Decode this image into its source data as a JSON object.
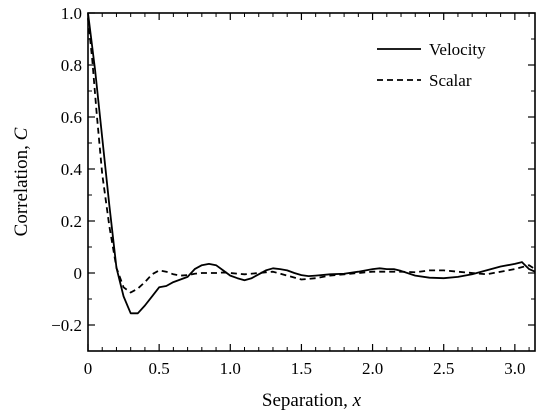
{
  "chart_data": {
    "type": "line",
    "xlabel": "Separation, ",
    "xlabel_var": "x",
    "ylabel": "Correlation, ",
    "ylabel_var": "C",
    "xlim": [
      0,
      3.1416
    ],
    "ylim": [
      -0.3,
      1.0
    ],
    "xticks": [
      0,
      0.5,
      1.0,
      1.5,
      2.0,
      2.5,
      3.0
    ],
    "xtick_labels": [
      "0",
      "0.5",
      "1.0",
      "1.5",
      "2.0",
      "2.5",
      "3.0"
    ],
    "yticks": [
      -0.2,
      0,
      0.2,
      0.4,
      0.6,
      0.8,
      1.0
    ],
    "ytick_labels": [
      "−0.2",
      "0",
      "0.2",
      "0.4",
      "0.6",
      "0.8",
      "1.0"
    ],
    "legend_position": "top-right",
    "grid": false,
    "series": [
      {
        "name": "Velocity",
        "style": "solid",
        "color": "#000000",
        "x": [
          0,
          0.05,
          0.1,
          0.15,
          0.2,
          0.25,
          0.3,
          0.35,
          0.4,
          0.45,
          0.5,
          0.55,
          0.6,
          0.65,
          0.7,
          0.75,
          0.8,
          0.85,
          0.9,
          0.95,
          1.0,
          1.05,
          1.1,
          1.15,
          1.2,
          1.25,
          1.3,
          1.35,
          1.4,
          1.45,
          1.5,
          1.55,
          1.6,
          1.7,
          1.8,
          1.9,
          2.0,
          2.05,
          2.1,
          2.15,
          2.2,
          2.3,
          2.4,
          2.5,
          2.6,
          2.7,
          2.8,
          2.9,
          3.0,
          3.05,
          3.1,
          3.1416
        ],
        "y": [
          1.0,
          0.78,
          0.52,
          0.26,
          0.02,
          -0.09,
          -0.155,
          -0.155,
          -0.125,
          -0.09,
          -0.055,
          -0.05,
          -0.035,
          -0.025,
          -0.015,
          0.015,
          0.03,
          0.035,
          0.03,
          0.01,
          -0.01,
          -0.02,
          -0.028,
          -0.02,
          -0.005,
          0.01,
          0.018,
          0.015,
          0.01,
          0.0,
          -0.008,
          -0.012,
          -0.01,
          -0.005,
          -0.003,
          0.005,
          0.015,
          0.018,
          0.015,
          0.015,
          0.008,
          -0.01,
          -0.018,
          -0.02,
          -0.015,
          -0.005,
          0.01,
          0.025,
          0.035,
          0.042,
          0.015,
          0.005
        ]
      },
      {
        "name": "Scalar",
        "style": "dashed",
        "color": "#000000",
        "x": [
          0,
          0.03,
          0.06,
          0.1,
          0.15,
          0.2,
          0.25,
          0.3,
          0.35,
          0.4,
          0.45,
          0.5,
          0.55,
          0.6,
          0.65,
          0.7,
          0.75,
          0.8,
          0.85,
          0.9,
          0.95,
          1.0,
          1.1,
          1.2,
          1.3,
          1.4,
          1.5,
          1.6,
          1.7,
          1.8,
          1.9,
          2.0,
          2.1,
          2.2,
          2.3,
          2.4,
          2.5,
          2.6,
          2.7,
          2.8,
          2.9,
          3.0,
          3.1,
          3.1416
        ],
        "y": [
          0.98,
          0.82,
          0.62,
          0.38,
          0.18,
          0.02,
          -0.055,
          -0.075,
          -0.06,
          -0.035,
          -0.005,
          0.01,
          0.005,
          -0.005,
          -0.01,
          -0.008,
          -0.003,
          0.0,
          0.0,
          0.0,
          0.002,
          0.0,
          -0.005,
          0.0,
          0.005,
          -0.01,
          -0.025,
          -0.02,
          -0.01,
          -0.005,
          0.0,
          0.005,
          0.005,
          0.005,
          0.003,
          0.01,
          0.01,
          0.005,
          0.0,
          -0.005,
          0.005,
          0.015,
          0.03,
          0.015
        ]
      }
    ]
  }
}
